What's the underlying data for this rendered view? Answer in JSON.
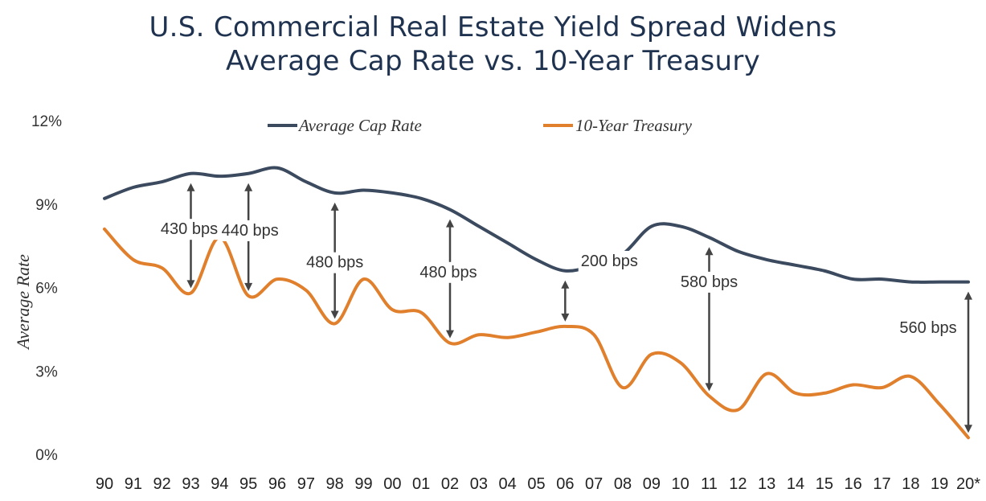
{
  "chart_data": {
    "type": "line",
    "title": "U.S. Commercial Real Estate Yield Spread Widens",
    "subtitle": "Average Cap Rate vs. 10-Year Treasury",
    "ylabel": "Average Rate",
    "xlabel": "",
    "ylim": [
      0,
      12
    ],
    "yticks": [
      "0%",
      "3%",
      "6%",
      "9%",
      "12%"
    ],
    "ytick_values": [
      0,
      3,
      6,
      9,
      12
    ],
    "categories": [
      "90",
      "91",
      "92",
      "93",
      "94",
      "95",
      "96",
      "97",
      "98",
      "99",
      "00",
      "01",
      "02",
      "03",
      "04",
      "05",
      "06",
      "07",
      "08",
      "09",
      "10",
      "11",
      "12",
      "13",
      "14",
      "15",
      "16",
      "17",
      "18",
      "19",
      "20*"
    ],
    "series": [
      {
        "name": "Average Cap Rate",
        "color": "#3b4a5e",
        "values": [
          9.2,
          9.6,
          9.8,
          10.1,
          10.0,
          10.1,
          10.3,
          9.8,
          9.4,
          9.5,
          9.4,
          9.2,
          8.8,
          8.2,
          7.6,
          7.0,
          6.6,
          6.8,
          7.2,
          8.2,
          8.2,
          7.8,
          7.3,
          7.0,
          6.8,
          6.6,
          6.3,
          6.3,
          6.2,
          6.2,
          6.2
        ]
      },
      {
        "name": "10-Year Treasury",
        "color": "#e07f2c",
        "values": [
          8.1,
          7.0,
          6.7,
          5.8,
          7.8,
          5.7,
          6.3,
          5.9,
          4.7,
          6.3,
          5.2,
          5.1,
          4.0,
          4.3,
          4.2,
          4.4,
          4.6,
          4.3,
          2.4,
          3.6,
          3.3,
          2.1,
          1.6,
          2.9,
          2.2,
          2.2,
          2.5,
          2.4,
          2.8,
          1.8,
          0.6
        ]
      }
    ],
    "annotations": [
      {
        "label": "430 bps",
        "x": "93"
      },
      {
        "label": "440 bps",
        "x": "95"
      },
      {
        "label": "480 bps",
        "x": "98"
      },
      {
        "label": "480 bps",
        "x": "02"
      },
      {
        "label": "200 bps",
        "x": "06"
      },
      {
        "label": "580 bps",
        "x": "11"
      },
      {
        "label": "560 bps",
        "x": "20*"
      }
    ],
    "legend_position": "top",
    "grid": false
  }
}
